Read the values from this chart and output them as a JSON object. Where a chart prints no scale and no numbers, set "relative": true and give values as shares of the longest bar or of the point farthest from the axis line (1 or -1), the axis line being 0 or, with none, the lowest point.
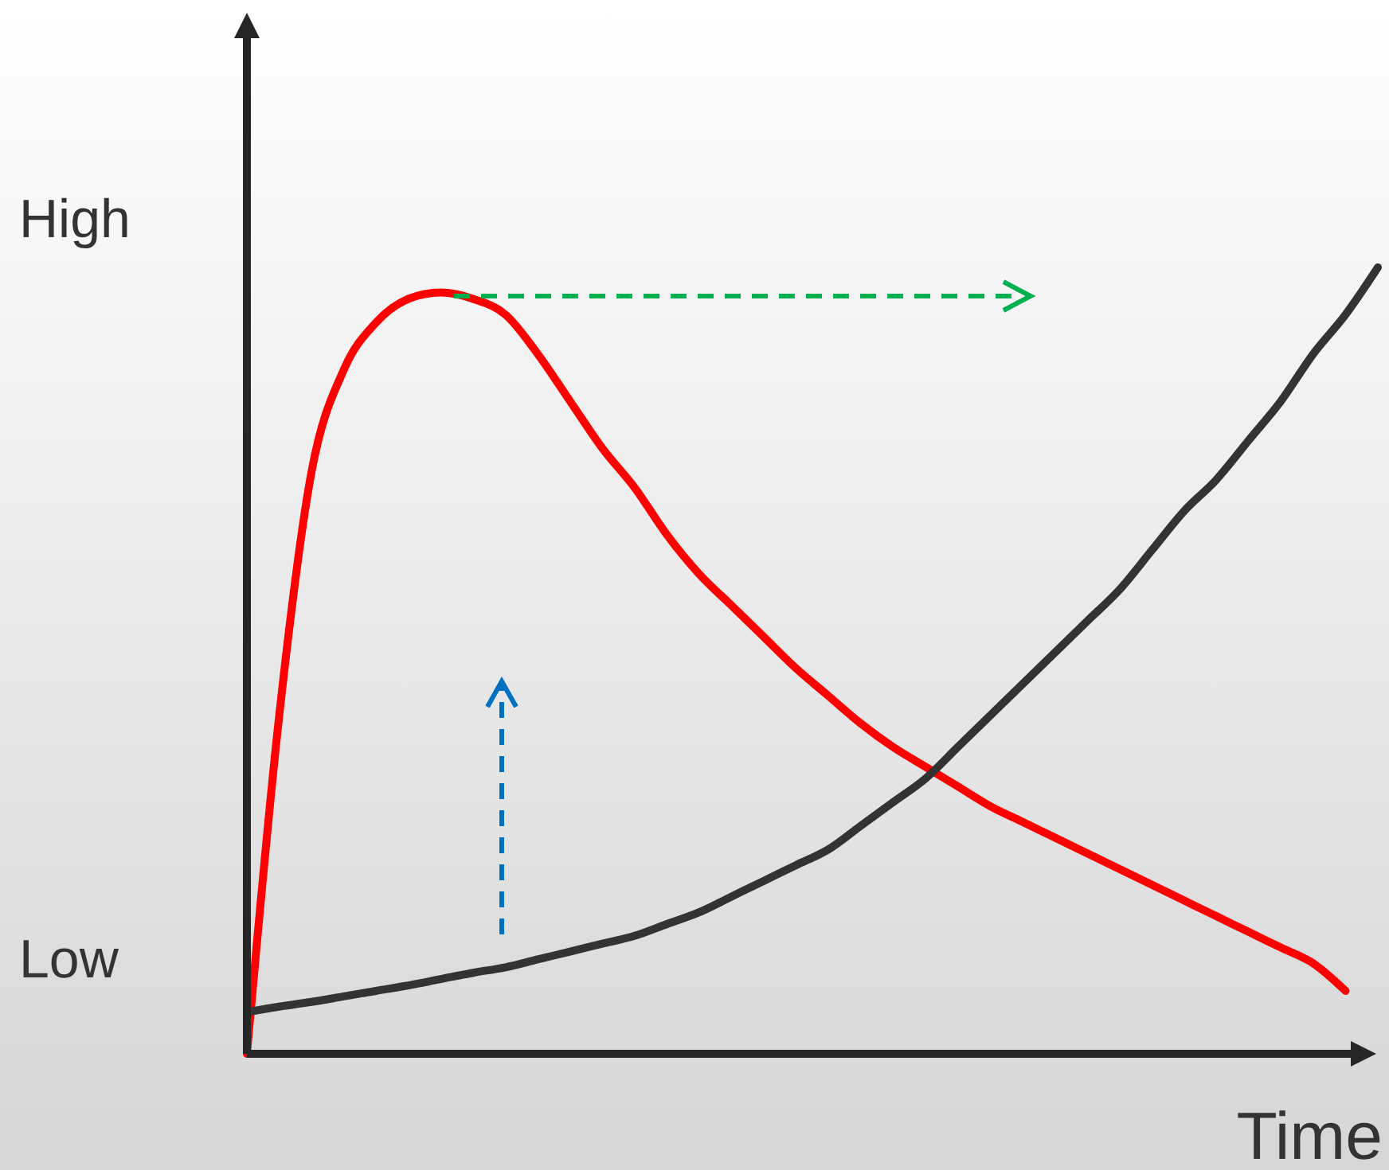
{
  "chart_data": {
    "type": "line",
    "relative": true,
    "xlabel": "Time",
    "categories": [
      null,
      null,
      null,
      null,
      null,
      null,
      null,
      null,
      null,
      null,
      null,
      null,
      null,
      null,
      null,
      null,
      null,
      null,
      null,
      null,
      null,
      null,
      null,
      null,
      null,
      null,
      null,
      null,
      null,
      null,
      null,
      null,
      null,
      null,
      null,
      null
    ],
    "series": [
      {
        "color": "#ff0000",
        "values": [
          0,
          0.43,
          0.74,
          0.87,
          0.93,
          0.96,
          0.968,
          0.96,
          0.94,
          0.89,
          0.83,
          0.77,
          0.72,
          0.66,
          0.61,
          0.57,
          0.53,
          0.49,
          0.455,
          0.42,
          0.39,
          0.365,
          0.34,
          0.315,
          0.295,
          0.275,
          0.255,
          0.235,
          0.215,
          0.195,
          0.175,
          0.155,
          0.135,
          0.115,
          0.08,
          null
        ]
      },
      {
        "color": "#333333",
        "values": [
          0.053,
          0.06,
          0.066,
          0.073,
          0.08,
          0.087,
          0.095,
          0.103,
          0.11,
          0.12,
          0.13,
          0.14,
          0.15,
          0.165,
          0.18,
          0.2,
          0.22,
          0.24,
          0.26,
          0.29,
          0.32,
          0.35,
          0.39,
          0.43,
          0.47,
          0.51,
          0.55,
          0.59,
          0.64,
          0.69,
          0.73,
          0.78,
          0.83,
          0.89,
          0.94,
          1
        ]
      }
    ],
    "annotations": [
      "High",
      "Low"
    ],
    "legend": false,
    "grid": false,
    "marker": "none",
    "line_style": "solid"
  }
}
